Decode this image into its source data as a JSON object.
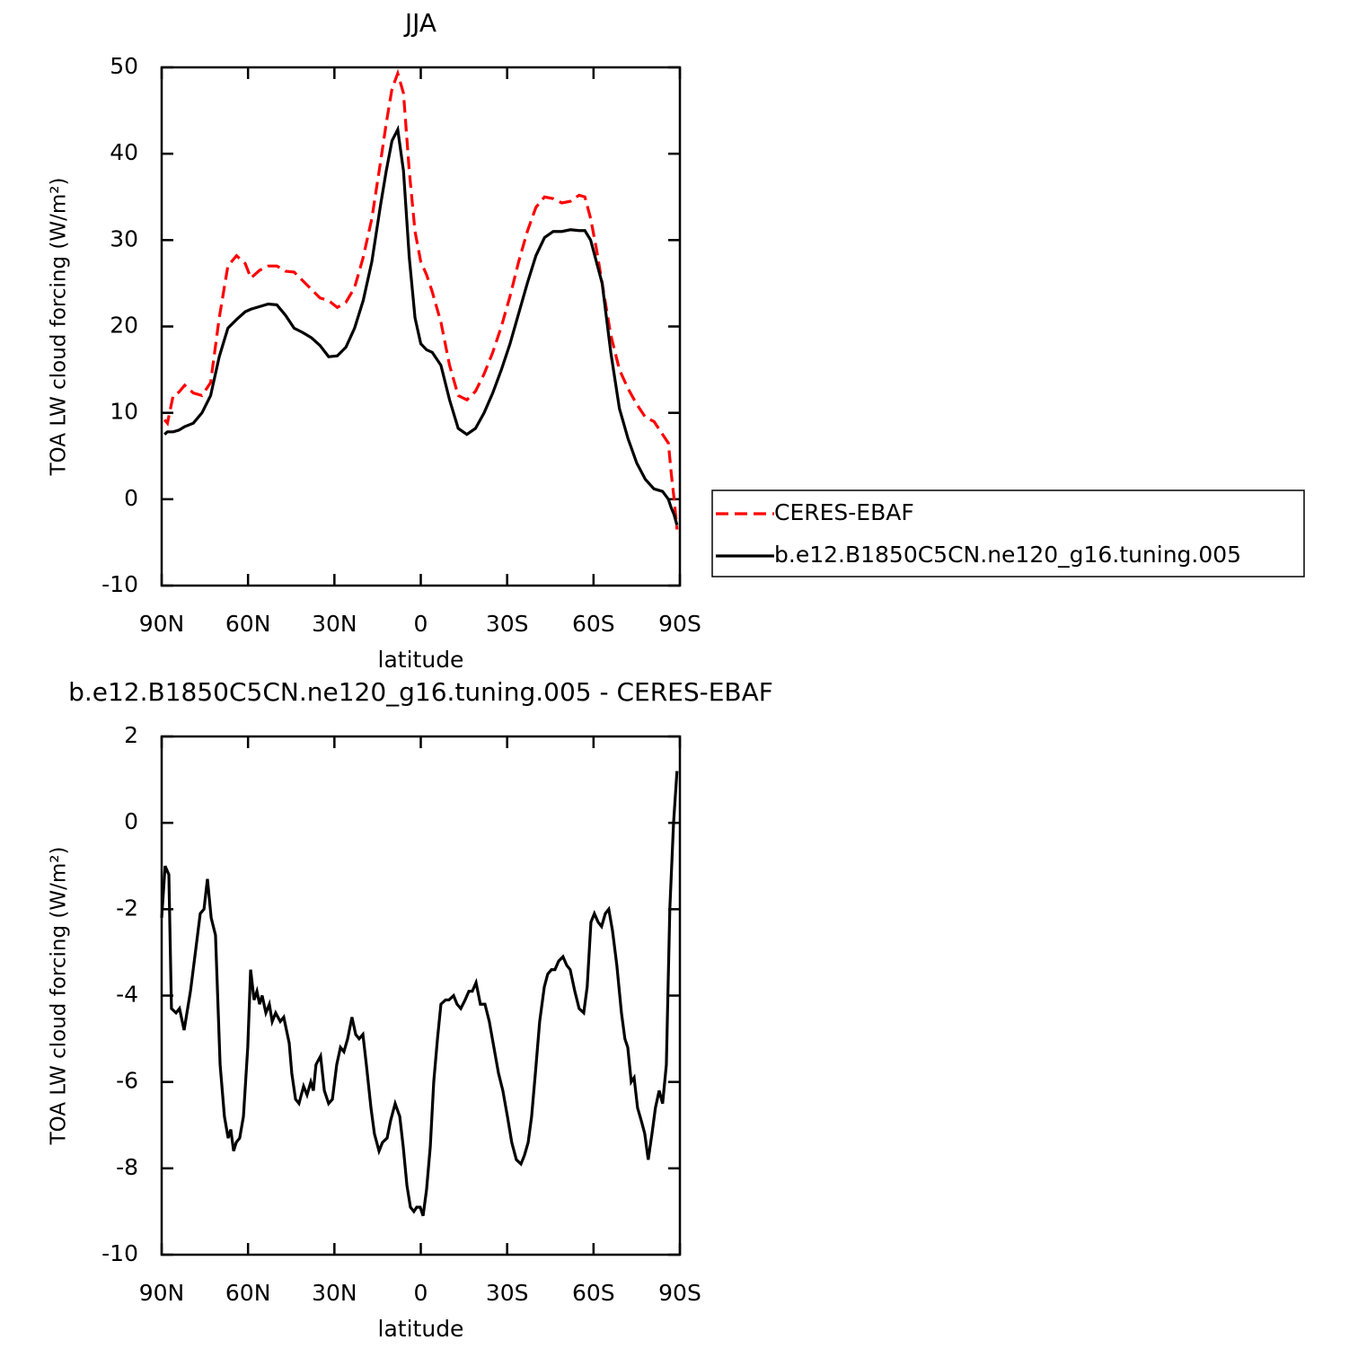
{
  "chart_data": [
    {
      "type": "line",
      "title": "JJA",
      "xlabel": "latitude",
      "ylabel": "TOA LW cloud forcing (W/m²)",
      "x": [
        89,
        88,
        86,
        84,
        82,
        79,
        76,
        73,
        70,
        67,
        64,
        61,
        59,
        56,
        53,
        50,
        47,
        44,
        41,
        38,
        35,
        32,
        29,
        26,
        23,
        20,
        17,
        14,
        12,
        10,
        8,
        6,
        4,
        2,
        0,
        -2,
        -4,
        -7,
        -10,
        -13,
        -16,
        -19,
        -22,
        -25,
        -28,
        -31,
        -34,
        -37,
        -40,
        -43,
        -46,
        -49,
        -52,
        -55,
        -57,
        -59,
        -61,
        -63,
        -66,
        -69,
        -72,
        -75,
        -78,
        -81,
        -84,
        -86,
        -87,
        -88,
        -89
      ],
      "series": [
        {
          "name": "CERES-EBAF",
          "color": "#ff0000",
          "line_style": "dashed",
          "values": [
            9.2,
            8.8,
            12.0,
            12.4,
            13.2,
            12.3,
            12.0,
            13.5,
            21,
            27.0,
            28.2,
            27.3,
            25.6,
            26.5,
            27.0,
            27.0,
            26.4,
            26.3,
            25.3,
            24.3,
            23.3,
            23.0,
            22.2,
            22.8,
            24.5,
            28,
            32.5,
            39,
            43.5,
            47.5,
            49.3,
            47,
            38,
            31,
            27.5,
            26,
            24,
            20.5,
            15.5,
            12,
            11.5,
            12.5,
            14.5,
            17,
            20,
            23.5,
            27.5,
            31,
            33.8,
            35,
            34.8,
            34.3,
            34.5,
            35.2,
            35,
            32.5,
            29,
            25,
            19,
            15,
            12.8,
            11,
            9.5,
            9,
            7.5,
            6.5,
            3,
            0,
            -3.5
          ]
        },
        {
          "name": "b.e12.B1850C5CN.ne120_g16.tuning.005",
          "color": "#000000",
          "line_style": "solid",
          "values": [
            7.5,
            7.8,
            7.8,
            8.0,
            8.4,
            8.8,
            10.0,
            12.0,
            16.5,
            19.8,
            20.8,
            21.7,
            22.0,
            22.3,
            22.6,
            22.5,
            21.3,
            19.8,
            19.3,
            18.7,
            17.8,
            16.5,
            16.6,
            17.6,
            19.8,
            23,
            27.5,
            34,
            38,
            41.5,
            42.8,
            38,
            28,
            21,
            18,
            17.3,
            17,
            15.5,
            11.5,
            8.2,
            7.5,
            8.2,
            10,
            12.3,
            15,
            18,
            21.5,
            25,
            28.2,
            30.3,
            31,
            31,
            31.2,
            31.1,
            31.1,
            30,
            27.5,
            25,
            17,
            10.5,
            7,
            4.2,
            2.3,
            1.2,
            0.9,
            0,
            -1,
            -1.8,
            -3
          ]
        }
      ],
      "xlim": [
        90,
        -90
      ],
      "xticks": [
        {
          "value": 90,
          "label": "90N"
        },
        {
          "value": 60,
          "label": "60N"
        },
        {
          "value": 30,
          "label": "30N"
        },
        0,
        {
          "value": -30,
          "label": "30S"
        },
        {
          "value": -60,
          "label": "60S"
        },
        {
          "value": -90,
          "label": "90S"
        }
      ],
      "ylim": [
        -10,
        50
      ],
      "yticks": [
        -10,
        0,
        10,
        20,
        30,
        40,
        50
      ],
      "legend": "right"
    },
    {
      "type": "line",
      "title": "b.e12.B1850C5CN.ne120_g16.tuning.005 - CERES-EBAF",
      "xlabel": "latitude",
      "ylabel": "TOA LW cloud forcing (W/m²)",
      "x": [
        90,
        88.8,
        87.5,
        86.6,
        85.0,
        83.8,
        82.2,
        80.0,
        78.1,
        76.6,
        75.3,
        74.1,
        72.8,
        71.3,
        69.7,
        68.2,
        66.9,
        66.0,
        65.0,
        64.1,
        62.9,
        61.6,
        60.1,
        59.1,
        57.9,
        56.9,
        56.0,
        55.1,
        53.8,
        52.6,
        51.6,
        50.4,
        48.8,
        47.6,
        45.7,
        44.8,
        43.5,
        42.3,
        40.7,
        39.5,
        38.2,
        37.3,
        36.4,
        34.8,
        33.5,
        32.0,
        30.7,
        29.2,
        27.9,
        26.7,
        25.4,
        23.9,
        22.6,
        21.4,
        20.1,
        18.9,
        17.3,
        16.1,
        14.5,
        13.3,
        11.7,
        10.5,
        8.9,
        7.3,
        6.1,
        4.8,
        3.6,
        2.4,
        1.4,
        0.2,
        -0.8,
        -2.0,
        -3.3,
        -4.5,
        -5.8,
        -7.0,
        -8.6,
        -9.8,
        -11.4,
        -12.6,
        -13.9,
        -15.4,
        -16.7,
        -17.9,
        -19.2,
        -20.7,
        -22.3,
        -23.8,
        -25.4,
        -27.0,
        -28.5,
        -30.1,
        -31.6,
        -33.2,
        -34.8,
        -36.0,
        -37.3,
        -38.5,
        -39.8,
        -41.3,
        -42.9,
        -44.1,
        -45.4,
        -46.6,
        -47.9,
        -49.4,
        -50.7,
        -51.9,
        -53.5,
        -55.0,
        -56.6,
        -57.8,
        -59.1,
        -60.3,
        -61.6,
        -62.8,
        -64.1,
        -65.3,
        -66.6,
        -68.1,
        -69.7,
        -70.9,
        -71.9,
        -73.1,
        -74.1,
        -75.3,
        -76.6,
        -77.8,
        -79.0,
        -80.3,
        -81.5,
        -82.8,
        -84.0,
        -85.3,
        -86.5,
        -87.8,
        -89.0
      ],
      "series": [
        {
          "color": "#000000",
          "line_style": "solid",
          "values": [
            -2.2,
            -1.0,
            -1.2,
            -4.3,
            -4.4,
            -4.3,
            -4.8,
            -3.9,
            -2.9,
            -2.1,
            -2.0,
            -1.3,
            -2.2,
            -2.6,
            -5.6,
            -6.8,
            -7.3,
            -7.1,
            -7.6,
            -7.4,
            -7.3,
            -6.8,
            -5.2,
            -3.4,
            -4.1,
            -3.9,
            -4.2,
            -4.0,
            -4.4,
            -4.2,
            -4.6,
            -4.4,
            -4.6,
            -4.5,
            -5.1,
            -5.8,
            -6.4,
            -6.5,
            -6.1,
            -6.3,
            -6.0,
            -6.2,
            -5.6,
            -5.4,
            -6.2,
            -6.5,
            -6.4,
            -5.6,
            -5.2,
            -5.3,
            -5.0,
            -4.5,
            -4.9,
            -5.0,
            -4.9,
            -5.6,
            -6.6,
            -7.2,
            -7.6,
            -7.4,
            -7.3,
            -6.9,
            -6.5,
            -6.8,
            -7.5,
            -8.4,
            -8.9,
            -9.0,
            -8.9,
            -8.9,
            -9.1,
            -8.5,
            -7.5,
            -6.0,
            -5.0,
            -4.2,
            -4.1,
            -4.1,
            -4.0,
            -4.2,
            -4.3,
            -4.1,
            -3.9,
            -3.9,
            -3.7,
            -4.2,
            -4.2,
            -4.6,
            -5.2,
            -5.8,
            -6.2,
            -6.8,
            -7.4,
            -7.8,
            -7.9,
            -7.7,
            -7.4,
            -6.8,
            -5.8,
            -4.6,
            -3.8,
            -3.5,
            -3.4,
            -3.4,
            -3.2,
            -3.1,
            -3.3,
            -3.4,
            -3.9,
            -4.3,
            -4.4,
            -3.8,
            -2.3,
            -2.1,
            -2.3,
            -2.4,
            -2.1,
            -2.0,
            -2.5,
            -3.3,
            -4.4,
            -5.0,
            -5.2,
            -6.0,
            -5.9,
            -6.6,
            -6.9,
            -7.2,
            -7.8,
            -7.2,
            -6.6,
            -6.2,
            -6.5,
            -5.6,
            -2.0,
            0.0,
            1.2
          ]
        }
      ],
      "xlim": [
        90,
        -90
      ],
      "xticks": [
        {
          "value": 90,
          "label": "90N"
        },
        {
          "value": 60,
          "label": "60N"
        },
        {
          "value": 30,
          "label": "30N"
        },
        0,
        {
          "value": -30,
          "label": "30S"
        },
        {
          "value": -60,
          "label": "60S"
        },
        {
          "value": -90,
          "label": "90S"
        }
      ],
      "ylim": [
        -10,
        2
      ],
      "yticks": [
        -10,
        -8,
        -6,
        -4,
        -2,
        0,
        2
      ]
    }
  ]
}
